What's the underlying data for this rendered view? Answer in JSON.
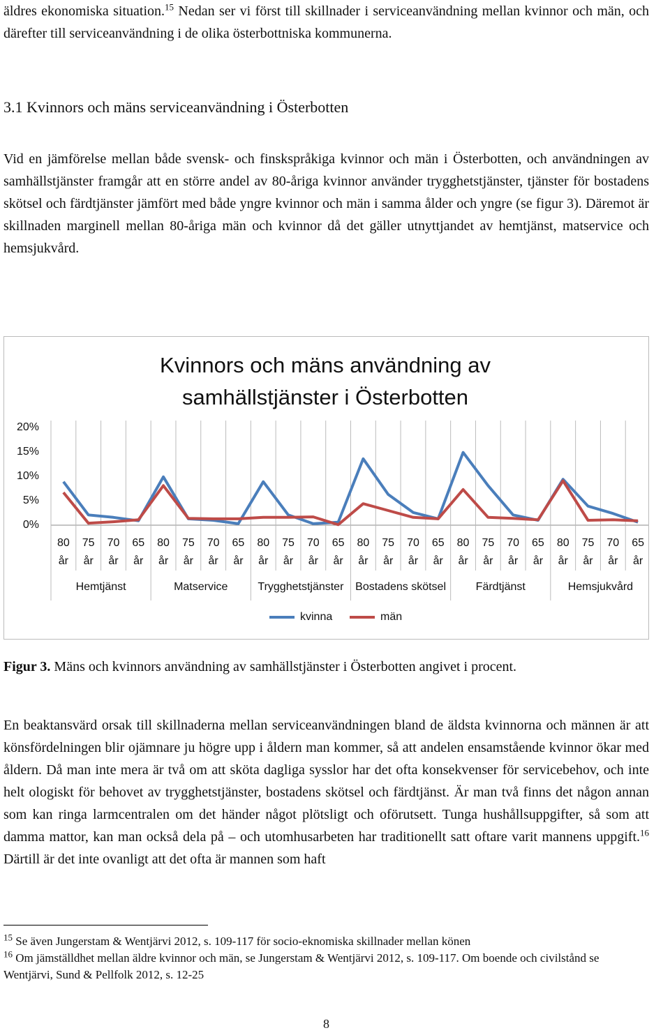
{
  "intro": {
    "text_a": "äldres ekonomiska situation.",
    "footnote_ref": "15",
    "text_b": "Nedan ser vi först till skillnader i serviceanvändning mellan kvinnor och män, och därefter till serviceanvändning i de olika österbottniska kommunerna."
  },
  "section": {
    "heading": "3.1 Kvinnors och mäns serviceanvändning i Österbotten",
    "paragraph": "Vid en jämförelse mellan både svensk- och finskspråkiga kvinnor och män i Österbotten, och användningen av samhällstjänster framgår att en större andel av 80-åriga kvinnor använder trygghetstjänster, tjänster för bostadens skötsel och färdtjänster jämfört med både yngre kvinnor och män i samma ålder och yngre (se figur 3). Däremot är skillnaden marginell mellan 80-åriga män och kvinnor då det gäller utnyttjandet av hemtjänst, matservice och hemsjukvård."
  },
  "chart_data": {
    "type": "line",
    "title": "Kvinnors och mäns användning av samhällstjänster i Österbotten",
    "categories": [
      "80 år",
      "75 år",
      "70 år",
      "65 år",
      "80 år",
      "75 år",
      "70 år",
      "65 år",
      "80 år",
      "75 år",
      "70 år",
      "65 år",
      "80 år",
      "75 år",
      "70 år",
      "65 år",
      "80 år",
      "75 år",
      "70 år",
      "65 år",
      "80 år",
      "75 år",
      "70 år",
      "65 år"
    ],
    "category_groups": [
      "Hemtjänst",
      "Matservice",
      "Trygghetstjänster",
      "Bostadens skötsel",
      "Färdtjänst",
      "Hemsjukvård"
    ],
    "series": [
      {
        "name": "kvinna",
        "color": "#4a7ebb",
        "values": [
          8.9,
          2.1,
          1.6,
          0.9,
          9.9,
          1.3,
          1.0,
          0.3,
          8.9,
          2.1,
          0.3,
          0.6,
          13.6,
          6.3,
          2.6,
          1.3,
          14.9,
          8.1,
          2.1,
          1.0,
          9.4,
          3.9,
          2.4,
          0.6
        ]
      },
      {
        "name": "män",
        "color": "#be4b48",
        "values": [
          6.7,
          0.4,
          0.7,
          1.1,
          8.1,
          1.4,
          1.3,
          1.3,
          1.6,
          1.6,
          1.7,
          0.1,
          4.4,
          3.0,
          1.6,
          1.3,
          7.3,
          1.6,
          1.4,
          1.1,
          9.1,
          1.0,
          1.1,
          0.9
        ]
      }
    ],
    "ylim": [
      0,
      20
    ],
    "yticks": [
      {
        "value": 0,
        "label": "0%"
      },
      {
        "value": 5,
        "label": "5%"
      },
      {
        "value": 10,
        "label": "10%"
      },
      {
        "value": 15,
        "label": "15%"
      },
      {
        "value": 20,
        "label": "20%"
      }
    ],
    "legend": "bottom"
  },
  "figure": {
    "label": "Figur 3.",
    "caption": "Mäns och kvinnors användning av samhällstjänster i Österbotten angivet i procent."
  },
  "paragraph2": {
    "text_a": "En beaktansvärd orsak till skillnaderna mellan serviceanvändningen bland de äldsta kvinnorna och männen är att könsfördelningen blir ojämnare ju högre upp i åldern man kommer, så att andelen ensamstående kvinnor ökar med åldern. Då man inte mera är två om att sköta dagliga sysslor har det ofta konsekvenser för servicebehov, och inte helt ologiskt för behovet av trygghetstjänster, bostadens skötsel och färdtjänst. Är man två finns det någon annan som kan ringa larmcentralen om det händer något plötsligt och oförutsett. Tunga hushållsuppgifter, så som att damma mattor, kan man också dela på – och utomhusarbeten har traditionellt satt oftare varit mannens uppgift.",
    "footnote_ref": "16",
    "text_b": "Därtill är det inte ovanligt att det ofta är mannen som haft"
  },
  "footnotes": [
    {
      "number": "15",
      "text": "Se även Jungerstam & Wentjärvi 2012, s. 109-117 för socio-eknomiska skillnader mellan könen"
    },
    {
      "number": "16",
      "text": "Om jämställdhet mellan äldre kvinnor och män, se Jungerstam & Wentjärvi 2012, s. 109-117. Om boende och civilstånd se Wentjärvi, Sund & Pellfolk 2012, s. 12-25"
    }
  ],
  "page_number": "8"
}
